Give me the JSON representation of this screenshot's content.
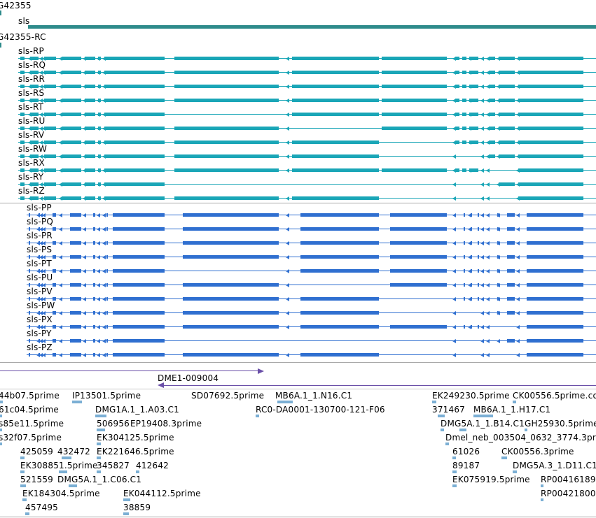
{
  "gene": {
    "id_label": "G42355",
    "name_label": "sls",
    "rc_label": "G42355-RC"
  },
  "colors": {
    "gene_bar": "#2e8b8b",
    "rna_transcript": "#1aa6b7",
    "protein_transcript": "#2f6fd0",
    "prediction": "#6a4fa8",
    "est": "#7bafd4",
    "separator": "#a8a8a8"
  },
  "rna_transcripts": [
    "sls-RP",
    "sls-RQ",
    "sls-RR",
    "sls-RS",
    "sls-RT",
    "sls-RU",
    "sls-RV",
    "sls-RW",
    "sls-RX",
    "sls-RY",
    "sls-RZ"
  ],
  "protein_transcripts": [
    "sls-PP",
    "sls-PQ",
    "sls-PR",
    "sls-PS",
    "sls-PT",
    "sls-PU",
    "sls-PV",
    "sls-PW",
    "sls-PX",
    "sls-PY",
    "sls-PZ"
  ],
  "prediction": {
    "label": "DME1-009004"
  },
  "est_labels": [
    "44b07.5prime",
    "IP13501.5prime",
    "SD07692.5prime",
    "MB6A.1_1.N16.C1",
    "EK249230.5prime",
    "CK00556.5prime.co",
    "61c04.5prime",
    "DMG1A.1_1.A03.C1",
    "RC0-DA0001-130700-121-F06",
    "371467",
    "MB6A.1_1.H17.C1",
    "s85e11.5prime",
    "506956",
    "EP19408.3prime",
    "DMG5A.1_1.B14.C1",
    "GH25930.5prime",
    "s32f07.5prime",
    "EK304125.5prime",
    "Dmel_neb_003504_0632_3774.3pri",
    "425059",
    "432472",
    "EK221646.5prime",
    "61026",
    "CK00556.3prime",
    "EK30885",
    "1.5prime",
    "345827",
    "412642",
    "89187",
    "DMG5A.3_1.D11.C1",
    "521559",
    "DMG5A.1_1.C06.C1",
    "EK075919.5prime",
    "RP00416189",
    "EK184304.5prime",
    "EK044112.5prime",
    "RP00421800",
    "457495",
    "38859"
  ]
}
